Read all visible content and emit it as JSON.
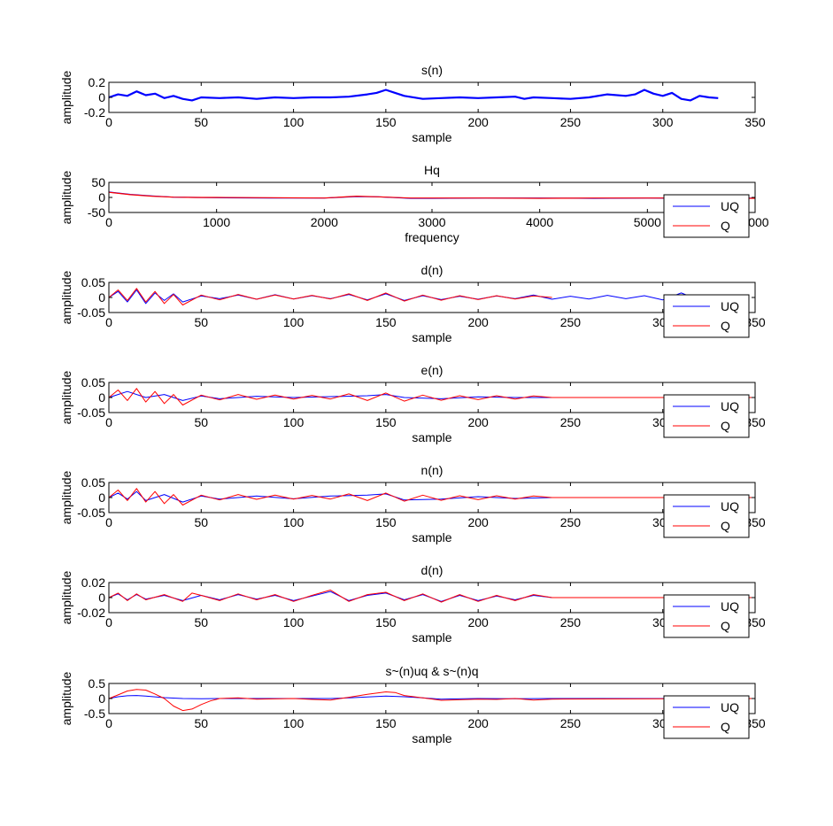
{
  "figure": {
    "colors": {
      "uq": "#0000ff",
      "q": "#ff0000",
      "axes": "#000000",
      "background": "#ffffff"
    }
  },
  "chart_data": [
    {
      "type": "line",
      "title": "s(n)",
      "xlabel": "sample",
      "ylabel": "amplitude",
      "xlim": [
        0,
        350
      ],
      "ylim": [
        -0.2,
        0.2
      ],
      "xticks": [
        "0",
        "50",
        "100",
        "150",
        "200",
        "250",
        "300",
        "350"
      ],
      "yticks": [
        "-0.2",
        "0",
        "0.2"
      ],
      "grid": false,
      "legend": null,
      "series": [
        {
          "key": "s",
          "color": "#0000ff",
          "width": 2.2,
          "x": [
            0,
            5,
            10,
            15,
            20,
            25,
            30,
            35,
            40,
            45,
            50,
            60,
            70,
            80,
            90,
            100,
            110,
            120,
            130,
            140,
            145,
            150,
            155,
            160,
            170,
            180,
            190,
            200,
            210,
            220,
            225,
            230,
            240,
            250,
            260,
            270,
            280,
            285,
            290,
            295,
            300,
            305,
            310,
            315,
            320,
            325,
            330
          ],
          "y": [
            0.0,
            0.04,
            0.02,
            0.08,
            0.03,
            0.05,
            -0.01,
            0.02,
            -0.02,
            -0.04,
            0.0,
            -0.01,
            0.0,
            -0.02,
            0.0,
            -0.01,
            0.0,
            0.0,
            0.01,
            0.04,
            0.06,
            0.1,
            0.06,
            0.02,
            -0.02,
            -0.01,
            0.0,
            -0.01,
            0.0,
            0.01,
            -0.02,
            0.0,
            -0.01,
            -0.02,
            0.0,
            0.04,
            0.02,
            0.04,
            0.1,
            0.05,
            0.02,
            0.06,
            -0.02,
            -0.04,
            0.02,
            0.0,
            -0.01
          ]
        }
      ]
    },
    {
      "type": "line",
      "title": "Hq",
      "xlabel": "frequency",
      "ylabel": "amplitude",
      "xlim": [
        0,
        6000
      ],
      "ylim": [
        -50,
        50
      ],
      "xticks": [
        "0",
        "1000",
        "2000",
        "3000",
        "4000",
        "5000",
        "6000"
      ],
      "yticks": [
        "-50",
        "0",
        "50"
      ],
      "grid": false,
      "legend": {
        "position": "bottom-right",
        "entries": [
          "UQ",
          "Q"
        ]
      },
      "series": [
        {
          "key": "UQ",
          "name": "UQ",
          "color": "#0000ff",
          "width": 1.2,
          "x": [
            0,
            200,
            400,
            600,
            800,
            1000,
            1500,
            2000,
            2300,
            2500,
            2800,
            3000,
            3500,
            4000,
            4500,
            5000,
            5500,
            6000
          ],
          "y": [
            18,
            10,
            5,
            1,
            0,
            -1,
            -2,
            -2,
            3,
            2,
            -3,
            -3,
            -2,
            -2,
            -3,
            -2,
            -3,
            -2
          ]
        },
        {
          "key": "Q",
          "name": "Q",
          "color": "#ff0000",
          "width": 1.2,
          "x": [
            0,
            200,
            400,
            600,
            800,
            1000,
            1500,
            2000,
            2300,
            2500,
            2800,
            3000,
            3500,
            4000,
            4500,
            5000,
            5500,
            6000
          ],
          "y": [
            17,
            9,
            4,
            1,
            0,
            0,
            -1,
            -2,
            4,
            2,
            -2,
            -2,
            -2,
            -3,
            -2,
            -2,
            -2,
            -3
          ]
        }
      ]
    },
    {
      "type": "line",
      "title": "d(n)",
      "xlabel": "sample",
      "ylabel": "amplitude",
      "xlim": [
        0,
        350
      ],
      "ylim": [
        -0.05,
        0.05
      ],
      "xticks": [
        "0",
        "50",
        "100",
        "150",
        "200",
        "250",
        "300",
        "350"
      ],
      "yticks": [
        "-0.05",
        "0",
        "0.05"
      ],
      "grid": false,
      "legend": {
        "position": "bottom-right",
        "entries": [
          "UQ",
          "Q"
        ]
      },
      "series": [
        {
          "key": "UQ",
          "name": "UQ",
          "color": "#0000ff",
          "width": 1,
          "x": [
            0,
            5,
            10,
            15,
            20,
            25,
            30,
            35,
            40,
            50,
            60,
            70,
            80,
            90,
            100,
            110,
            120,
            130,
            140,
            150,
            160,
            170,
            180,
            190,
            200,
            210,
            220,
            230,
            240,
            250,
            260,
            270,
            280,
            290,
            300,
            310,
            320,
            330
          ],
          "y": [
            0.0,
            0.02,
            -0.015,
            0.025,
            -0.02,
            0.015,
            -0.01,
            0.012,
            -0.015,
            0.005,
            -0.004,
            0.008,
            -0.006,
            0.009,
            -0.005,
            0.006,
            -0.004,
            0.01,
            -0.008,
            0.012,
            -0.01,
            0.006,
            -0.007,
            0.004,
            -0.006,
            0.005,
            -0.004,
            0.008,
            -0.006,
            0.004,
            -0.005,
            0.007,
            -0.004,
            0.006,
            -0.008,
            0.015,
            -0.01,
            0.005
          ]
        },
        {
          "key": "Q",
          "name": "Q",
          "color": "#ff0000",
          "width": 1,
          "x": [
            0,
            5,
            10,
            15,
            20,
            25,
            30,
            35,
            40,
            50,
            60,
            70,
            80,
            90,
            100,
            110,
            120,
            130,
            140,
            150,
            160,
            170,
            180,
            190,
            200,
            210,
            220,
            230,
            240
          ],
          "y": [
            0.0,
            0.025,
            -0.01,
            0.03,
            -0.015,
            0.02,
            -0.02,
            0.01,
            -0.025,
            0.008,
            -0.008,
            0.01,
            -0.006,
            0.008,
            -0.005,
            0.007,
            -0.005,
            0.012,
            -0.01,
            0.015,
            -0.012,
            0.008,
            -0.009,
            0.006,
            -0.007,
            0.006,
            -0.005,
            0.005,
            0.0
          ]
        }
      ]
    },
    {
      "type": "line",
      "title": "e(n)",
      "xlabel": "sample",
      "ylabel": "amplitude",
      "xlim": [
        0,
        350
      ],
      "ylim": [
        -0.05,
        0.05
      ],
      "xticks": [
        "0",
        "50",
        "100",
        "150",
        "200",
        "250",
        "300",
        "350"
      ],
      "yticks": [
        "-0.05",
        "0",
        "0.05"
      ],
      "grid": false,
      "legend": {
        "position": "bottom-right",
        "entries": [
          "UQ",
          "Q"
        ]
      },
      "series": [
        {
          "key": "UQ",
          "name": "UQ",
          "color": "#0000ff",
          "width": 1,
          "x": [
            0,
            10,
            20,
            30,
            40,
            50,
            60,
            80,
            100,
            120,
            140,
            150,
            160,
            180,
            200,
            220,
            240,
            350
          ],
          "y": [
            0.0,
            0.02,
            0.0,
            0.01,
            -0.01,
            0.005,
            -0.004,
            0.004,
            0.0,
            0.003,
            0.006,
            0.01,
            0.0,
            -0.004,
            0.002,
            0.0,
            0.0,
            0.0
          ]
        },
        {
          "key": "Q",
          "name": "Q",
          "color": "#ff0000",
          "width": 1,
          "x": [
            0,
            5,
            10,
            15,
            20,
            25,
            30,
            35,
            40,
            50,
            60,
            70,
            80,
            90,
            100,
            110,
            120,
            130,
            140,
            150,
            160,
            170,
            180,
            190,
            200,
            210,
            220,
            230,
            240,
            350
          ],
          "y": [
            0.0,
            0.025,
            -0.01,
            0.03,
            -0.015,
            0.02,
            -0.02,
            0.01,
            -0.025,
            0.008,
            -0.008,
            0.01,
            -0.006,
            0.008,
            -0.005,
            0.007,
            -0.005,
            0.012,
            -0.01,
            0.015,
            -0.012,
            0.008,
            -0.009,
            0.006,
            -0.007,
            0.006,
            -0.005,
            0.005,
            0.0,
            0.0
          ]
        }
      ]
    },
    {
      "type": "line",
      "title": "n(n)",
      "xlabel": "sample",
      "ylabel": "amplitude",
      "xlim": [
        0,
        350
      ],
      "ylim": [
        -0.05,
        0.05
      ],
      "xticks": [
        "0",
        "50",
        "100",
        "150",
        "200",
        "250",
        "300",
        "350"
      ],
      "yticks": [
        "-0.05",
        "0",
        "0.05"
      ],
      "grid": false,
      "legend": {
        "position": "bottom-right",
        "entries": [
          "UQ",
          "Q"
        ]
      },
      "series": [
        {
          "key": "UQ",
          "name": "UQ",
          "color": "#0000ff",
          "width": 1,
          "x": [
            0,
            5,
            10,
            15,
            20,
            30,
            40,
            50,
            60,
            80,
            100,
            120,
            140,
            150,
            160,
            180,
            200,
            220,
            240
          ],
          "y": [
            0.0,
            0.015,
            -0.005,
            0.02,
            -0.01,
            0.01,
            -0.015,
            0.005,
            -0.005,
            0.005,
            -0.004,
            0.005,
            0.008,
            0.012,
            -0.008,
            -0.005,
            0.003,
            -0.003,
            0.0
          ]
        },
        {
          "key": "Q",
          "name": "Q",
          "color": "#ff0000",
          "width": 1,
          "x": [
            0,
            5,
            10,
            15,
            20,
            25,
            30,
            35,
            40,
            50,
            60,
            70,
            80,
            90,
            100,
            110,
            120,
            130,
            140,
            150,
            160,
            170,
            180,
            190,
            200,
            210,
            220,
            230,
            240,
            350
          ],
          "y": [
            0.0,
            0.025,
            -0.01,
            0.03,
            -0.015,
            0.02,
            -0.02,
            0.01,
            -0.025,
            0.008,
            -0.008,
            0.01,
            -0.006,
            0.008,
            -0.005,
            0.007,
            -0.005,
            0.012,
            -0.01,
            0.015,
            -0.012,
            0.008,
            -0.009,
            0.006,
            -0.007,
            0.006,
            -0.005,
            0.005,
            0.0,
            0.0
          ]
        }
      ]
    },
    {
      "type": "line",
      "title": "d(n)",
      "xlabel": "sample",
      "ylabel": "amplitude",
      "xlim": [
        0,
        350
      ],
      "ylim": [
        -0.02,
        0.02
      ],
      "xticks": [
        "0",
        "50",
        "100",
        "150",
        "200",
        "250",
        "300",
        "350"
      ],
      "yticks": [
        "-0.02",
        "0",
        "0.02"
      ],
      "grid": false,
      "legend": {
        "position": "bottom-right",
        "entries": [
          "UQ",
          "Q"
        ]
      },
      "series": [
        {
          "key": "UQ",
          "name": "UQ",
          "color": "#0000ff",
          "width": 1,
          "x": [
            0,
            5,
            10,
            15,
            20,
            30,
            40,
            50,
            60,
            70,
            80,
            90,
            100,
            110,
            120,
            130,
            140,
            150,
            160,
            170,
            180,
            190,
            200,
            210,
            220,
            230,
            240,
            350
          ],
          "y": [
            0.0,
            0.005,
            -0.003,
            0.004,
            -0.002,
            0.003,
            -0.004,
            0.003,
            -0.003,
            0.004,
            -0.002,
            0.003,
            -0.004,
            0.002,
            0.008,
            -0.004,
            0.003,
            0.006,
            -0.003,
            0.004,
            -0.005,
            0.003,
            -0.004,
            0.002,
            -0.003,
            0.003,
            0.0,
            0.0
          ]
        },
        {
          "key": "Q",
          "name": "Q",
          "color": "#ff0000",
          "width": 1,
          "x": [
            0,
            5,
            10,
            15,
            20,
            30,
            40,
            45,
            50,
            60,
            70,
            80,
            90,
            100,
            110,
            120,
            130,
            140,
            150,
            160,
            170,
            180,
            190,
            200,
            210,
            220,
            230,
            240,
            350
          ],
          "y": [
            0.0,
            0.006,
            -0.004,
            0.005,
            -0.003,
            0.004,
            -0.005,
            0.006,
            0.003,
            -0.004,
            0.005,
            -0.003,
            0.004,
            -0.005,
            0.003,
            0.01,
            -0.005,
            0.004,
            0.007,
            -0.004,
            0.005,
            -0.006,
            0.004,
            -0.005,
            0.003,
            -0.004,
            0.004,
            0.0,
            0.0
          ]
        }
      ]
    },
    {
      "type": "line",
      "title": "s~(n)uq & s~(n)q",
      "xlabel": "sample",
      "ylabel": "amplitude",
      "xlim": [
        0,
        350
      ],
      "ylim": [
        -0.5,
        0.5
      ],
      "xticks": [
        "0",
        "50",
        "100",
        "150",
        "200",
        "250",
        "300",
        "350"
      ],
      "yticks": [
        "-0.5",
        "0",
        "0.5"
      ],
      "grid": false,
      "legend": {
        "position": "bottom-right",
        "entries": [
          "UQ",
          "Q"
        ]
      },
      "series": [
        {
          "key": "UQ",
          "name": "UQ",
          "color": "#0000ff",
          "width": 1,
          "x": [
            0,
            5,
            10,
            15,
            20,
            30,
            40,
            50,
            60,
            80,
            100,
            120,
            130,
            140,
            150,
            160,
            170,
            180,
            200,
            220,
            240,
            350
          ],
          "y": [
            0.0,
            0.06,
            0.09,
            0.1,
            0.08,
            0.03,
            0.0,
            -0.01,
            0.0,
            0.0,
            0.0,
            0.0,
            0.02,
            0.05,
            0.08,
            0.06,
            0.02,
            -0.02,
            0.0,
            -0.01,
            0.0,
            0.0
          ]
        },
        {
          "key": "Q",
          "name": "Q",
          "color": "#ff0000",
          "width": 1,
          "x": [
            0,
            5,
            10,
            15,
            20,
            25,
            30,
            35,
            40,
            45,
            50,
            55,
            60,
            70,
            80,
            100,
            110,
            120,
            130,
            140,
            150,
            155,
            160,
            170,
            180,
            190,
            200,
            210,
            220,
            230,
            240,
            350
          ],
          "y": [
            0.0,
            0.12,
            0.25,
            0.3,
            0.28,
            0.15,
            0.0,
            -0.25,
            -0.4,
            -0.35,
            -0.2,
            -0.08,
            0.0,
            0.02,
            -0.02,
            0.0,
            -0.03,
            -0.05,
            0.04,
            0.14,
            0.22,
            0.2,
            0.1,
            0.02,
            -0.06,
            -0.04,
            -0.02,
            -0.03,
            0.0,
            -0.05,
            -0.02,
            0.0
          ]
        }
      ]
    }
  ]
}
